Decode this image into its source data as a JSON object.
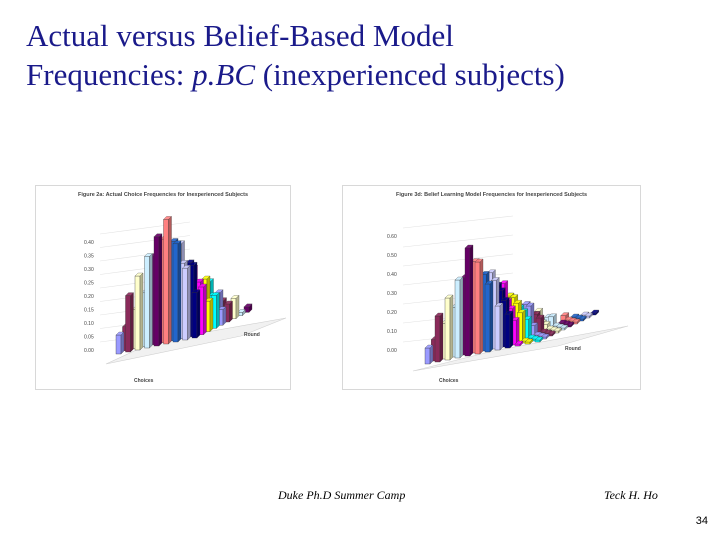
{
  "slide": {
    "title_line1": "Actual versus Belief-Based Model",
    "title_line2_prefix": "Frequencies: ",
    "title_line2_model": "p.BC",
    "title_line2_suffix": " (inexperienced subjects)",
    "footer_left": "Duke Ph.D Summer Camp",
    "footer_right": "Teck H. Ho",
    "page_number": "34"
  },
  "figures": [
    {
      "title": "Figure 2a: Actual Choice Frequencies for Inexperienced Subjects",
      "y_ticks": [
        "0.40",
        "0.35",
        "0.30",
        "0.25",
        "0.20",
        "0.15",
        "0.10",
        "0.05",
        "0.00"
      ],
      "x_label": "Choices",
      "depth_label": "Round"
    },
    {
      "title": "Figure 3d: Belief Learning Model Frequencies for Inexperienced Subjects",
      "y_ticks": [
        "0.60",
        "0.50",
        "0.40",
        "0.30",
        "0.20",
        "0.10",
        "0.00"
      ],
      "x_label": "Choices",
      "depth_label": "Round"
    }
  ],
  "colors": {
    "title": "#1a1a8a",
    "bars": [
      "#9a9aff",
      "#8a2a5a",
      "#ffffcc",
      "#cceeff",
      "#660066",
      "#ff8080",
      "#2266cc",
      "#ccccff",
      "#000080",
      "#ff00ff",
      "#ffff00",
      "#00ffff"
    ]
  }
}
